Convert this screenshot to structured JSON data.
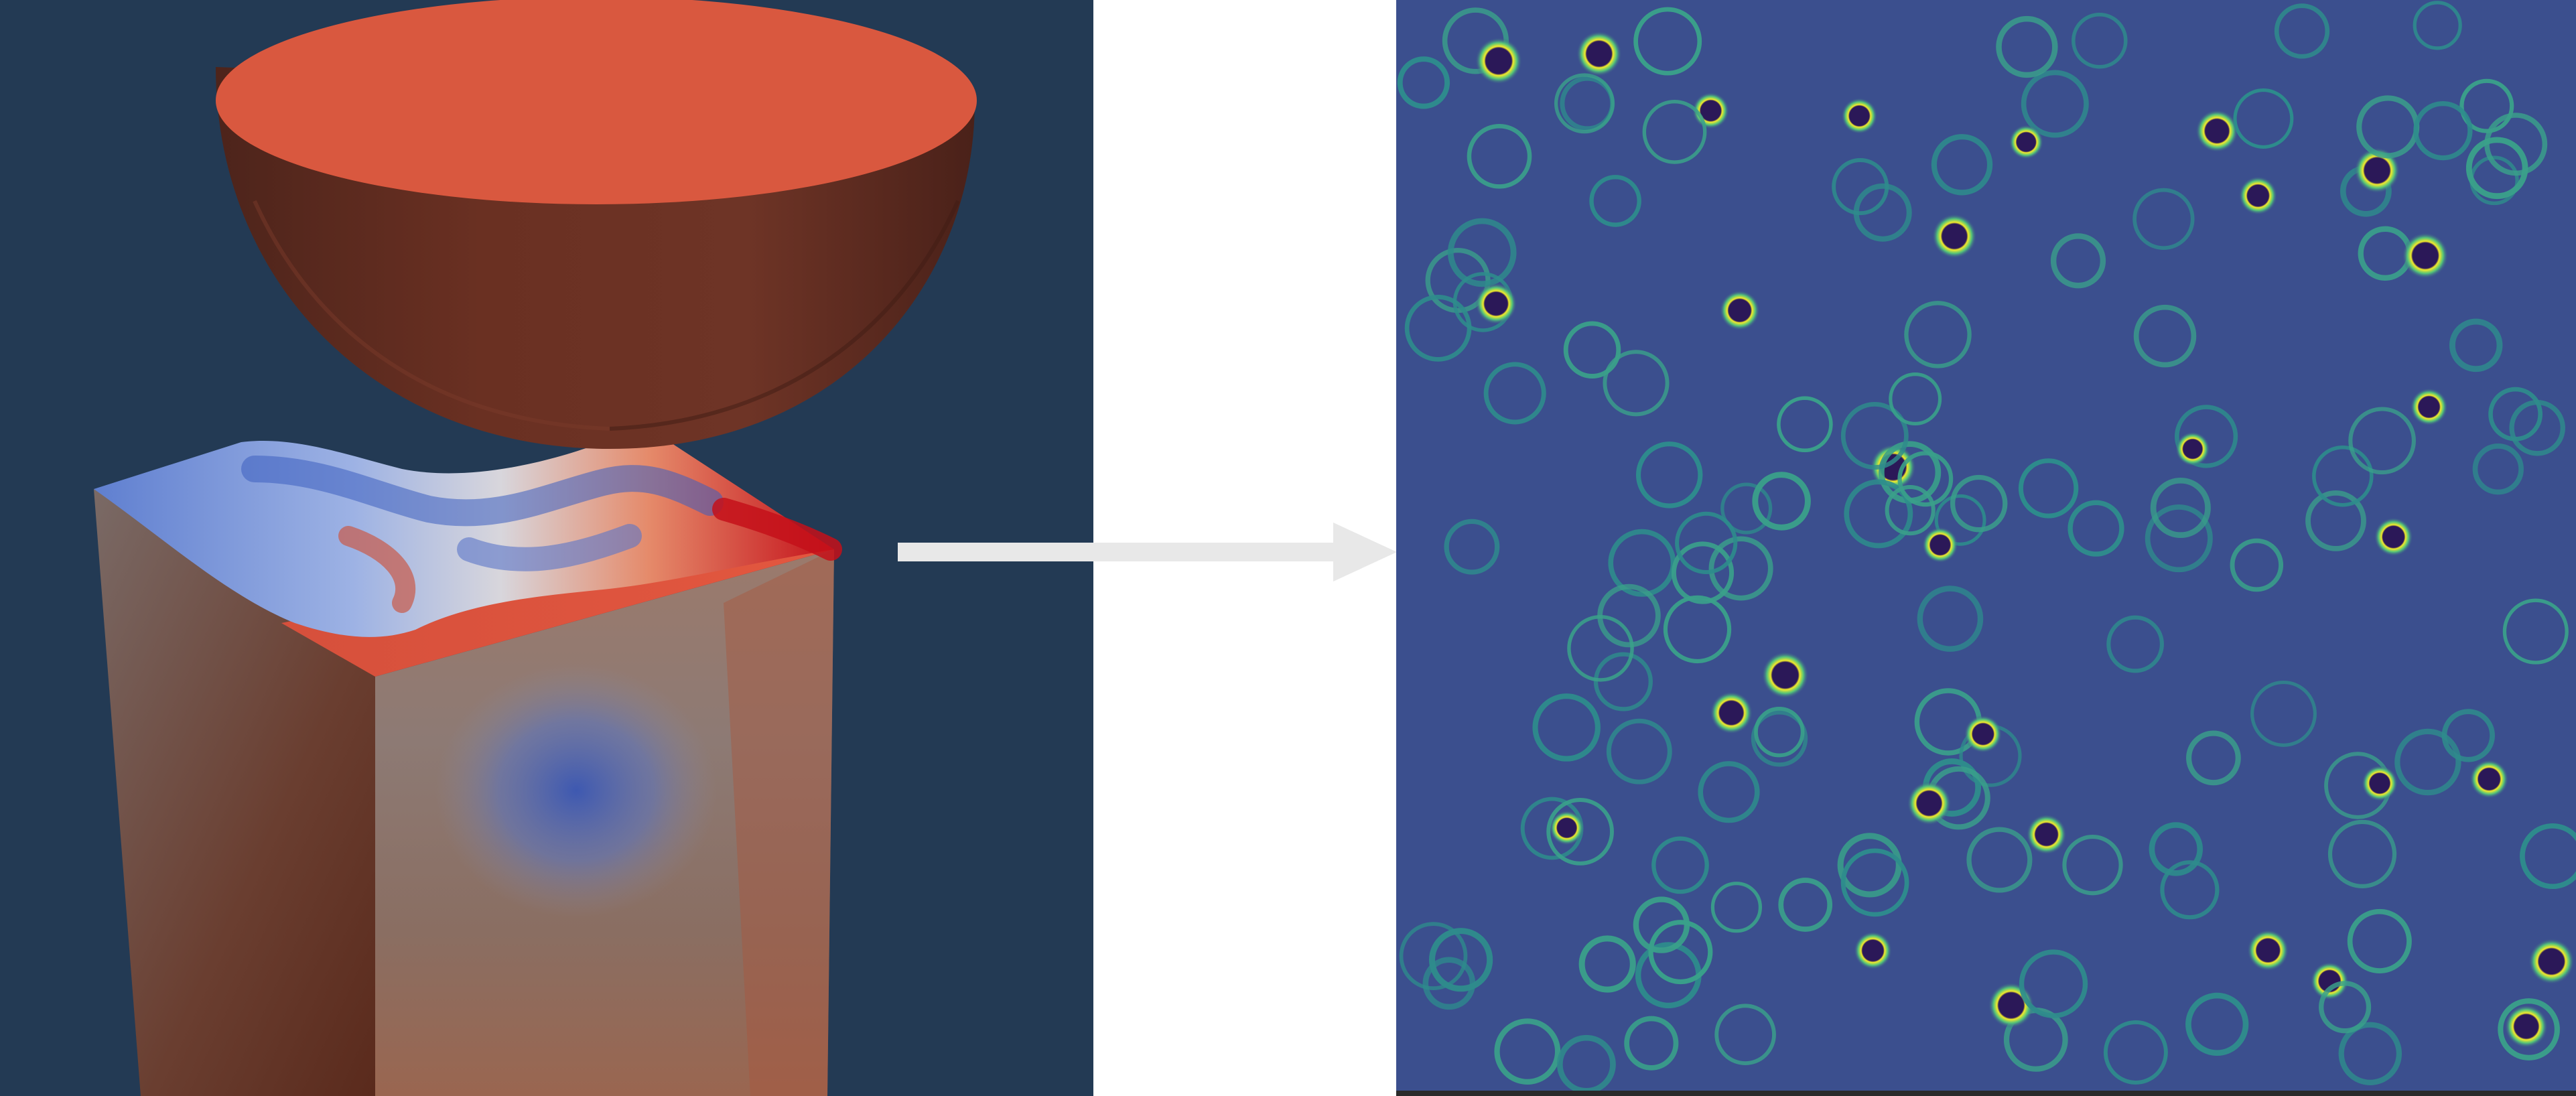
{
  "figure": {
    "left_panel": {
      "subject": "indentation-simulation",
      "background_color": "#233a54",
      "indenter_color": "#d9583f",
      "indenter_shadow_color": "#5e2a1f",
      "colormap": [
        "#3b5cc4",
        "#9fb4e6",
        "#e6e3df",
        "#e3775a",
        "#c4101a"
      ]
    },
    "arrow": {
      "color": "#e8e8e8",
      "direction": "right"
    },
    "right_panel": {
      "subject": "ring-pattern-field",
      "background_color": "#3b4f8e",
      "colormap": [
        "#2b1858",
        "#3b4f8e",
        "#2e8c8c",
        "#52c27a",
        "#f4ea2a"
      ],
      "ring_count": 150
    }
  }
}
